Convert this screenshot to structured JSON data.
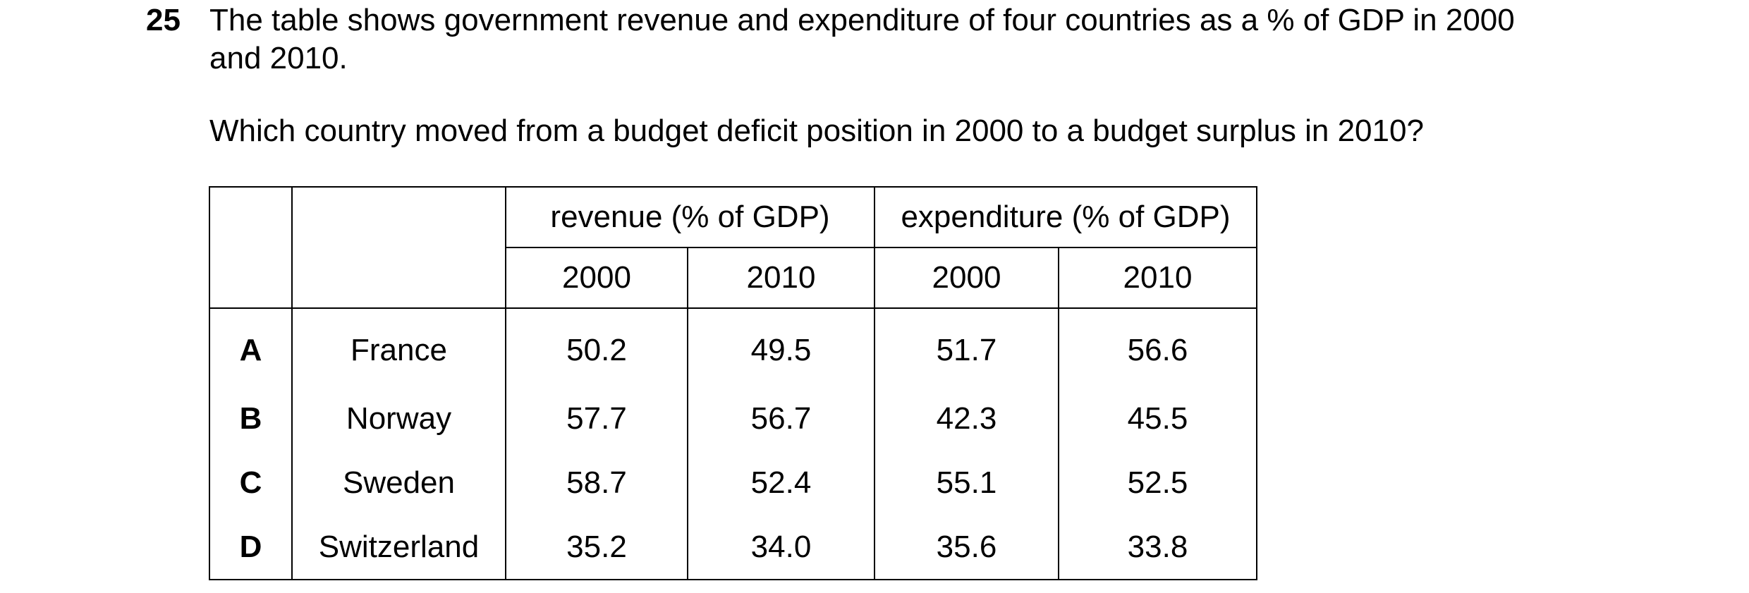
{
  "question": {
    "number": "25",
    "stem_line1": "The table shows government revenue and expenditure of four countries as a % of GDP in 2000",
    "stem_line2": "and 2010.",
    "prompt": "Which country moved from a budget deficit position in 2000 to a budget surplus in 2010?"
  },
  "table": {
    "header": {
      "revenue": "revenue (% of GDP)",
      "expenditure": "expenditure (% of GDP)",
      "years": [
        "2000",
        "2010",
        "2000",
        "2010"
      ]
    },
    "rows": [
      {
        "letter": "A",
        "country": "France",
        "values": [
          "50.2",
          "49.5",
          "51.7",
          "56.6"
        ]
      },
      {
        "letter": "B",
        "country": "Norway",
        "values": [
          "57.7",
          "56.7",
          "42.3",
          "45.5"
        ]
      },
      {
        "letter": "C",
        "country": "Sweden",
        "values": [
          "58.7",
          "52.4",
          "55.1",
          "52.5"
        ]
      },
      {
        "letter": "D",
        "country": "Switzerland",
        "values": [
          "35.2",
          "34.0",
          "35.6",
          "33.8"
        ]
      }
    ]
  }
}
